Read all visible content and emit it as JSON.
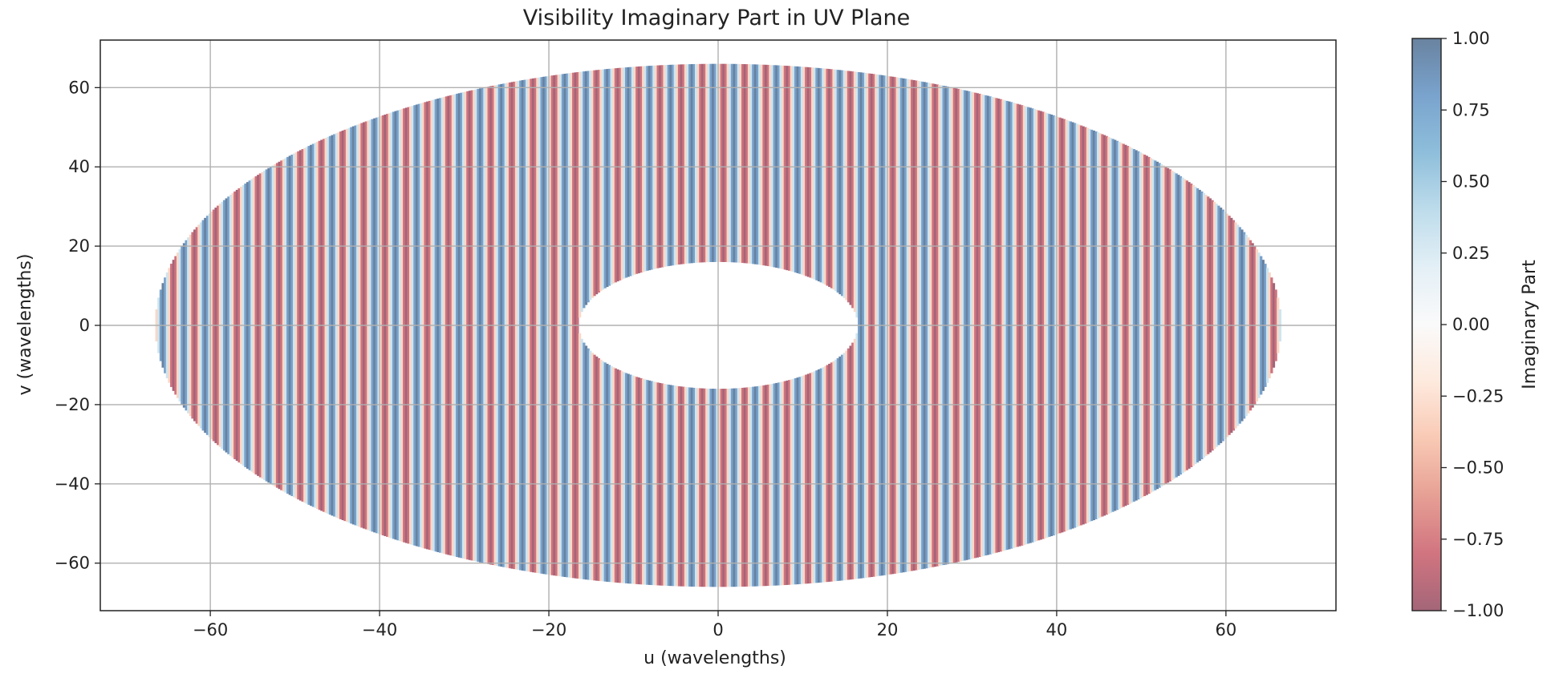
{
  "chart_data": {
    "type": "heatmap",
    "title": "Visibility Imaginary Part in UV Plane",
    "xlabel": "u (wavelengths)",
    "ylabel": "v (wavelengths)",
    "colorbar_label": "Imaginary Part",
    "xlim": [
      -73,
      73
    ],
    "ylim": [
      -72,
      72
    ],
    "xticks": [
      -60,
      -40,
      -20,
      0,
      20,
      40,
      60
    ],
    "yticks": [
      -60,
      -40,
      -20,
      0,
      20,
      40,
      60
    ],
    "grid": true,
    "colormap": "RdBu",
    "clim": [
      -1,
      1
    ],
    "colorbar_ticks": [
      1.0,
      0.75,
      0.5,
      0.25,
      0.0,
      -0.25,
      -0.5,
      -0.75,
      -1.0
    ],
    "colorbar_ticklabels": [
      "1.00",
      "0.75",
      "0.50",
      "0.25",
      "0.00",
      "−0.25",
      "−0.50",
      "−0.75",
      "−1.00"
    ],
    "region": {
      "shape": "annulus",
      "outer_radius_u": 66.5,
      "outer_radius_v": 66,
      "inner_radius_u": 16.5,
      "inner_radius_v": 16
    },
    "pattern": {
      "function": "sin(2π · frequency · u)",
      "frequency": 0.4,
      "sign_at_negative_u": 1
    },
    "alpha": 0.6,
    "colors": {
      "negative": "#67001f",
      "neutral": "#f7f7f7",
      "positive": "#053061",
      "axes": "#222222",
      "grid": "#b0b0b0"
    }
  }
}
